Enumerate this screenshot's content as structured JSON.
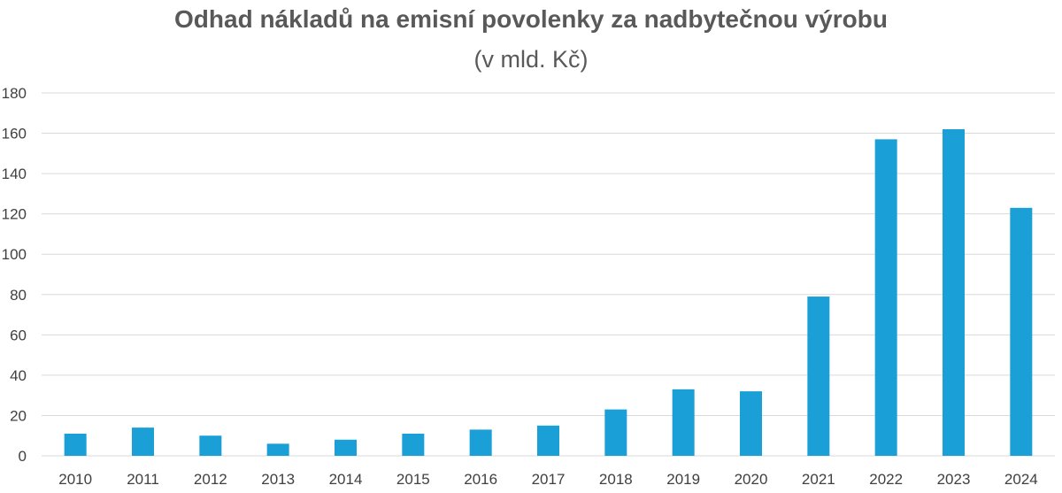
{
  "chart_data": {
    "type": "bar",
    "title": "Odhad nákladů na emisní povolenky za nadbytečnou výrobu",
    "subtitle": "(v mld. Kč)",
    "xlabel": "",
    "ylabel": "",
    "categories": [
      "2010",
      "2011",
      "2012",
      "2013",
      "2014",
      "2015",
      "2016",
      "2017",
      "2018",
      "2019",
      "2020",
      "2021",
      "2022",
      "2023",
      "2024"
    ],
    "values": [
      11,
      14,
      10,
      6,
      8,
      11,
      13,
      15,
      23,
      33,
      32,
      79,
      157,
      162,
      123
    ],
    "ylim": [
      0,
      180
    ],
    "yticks": [
      0,
      20,
      40,
      60,
      80,
      100,
      120,
      140,
      160,
      180
    ],
    "grid": true,
    "legend": "none",
    "bar_color": "#1a9fd7",
    "grid_color": "#d9d9d9",
    "text_color": "#595959"
  }
}
